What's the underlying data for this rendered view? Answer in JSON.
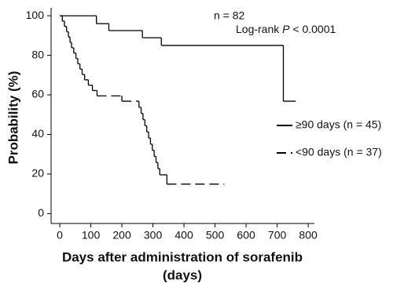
{
  "chart_data": {
    "type": "step",
    "xlabel": [
      "Days after administration of sorafenib",
      "(days)"
    ],
    "ylabel": "Probability (%)",
    "annotations": [
      "n = 82",
      "Log-rank",
      "P",
      "< 0.0001"
    ],
    "xlim": [
      -28,
      820
    ],
    "xticks": [
      0,
      100,
      200,
      300,
      400,
      500,
      600,
      700,
      800
    ],
    "ylim": [
      -5,
      104
    ],
    "yticks": [
      0,
      20,
      40,
      60,
      80,
      100
    ],
    "legend": "right",
    "series": [
      {
        "name": "≥90 days (n = 45)",
        "color": "#000000",
        "dash": false,
        "x": [
          0,
          118,
          158,
          266,
          327,
          720,
          760
        ],
        "values": [
          100,
          96,
          92.5,
          88.9,
          85,
          56.8,
          56.8
        ]
      },
      {
        "name": "<90 days (n = 37)",
        "color": "#000000",
        "dash": true,
        "x": [
          0,
          8,
          15,
          22,
          28,
          33,
          38,
          45,
          52,
          58,
          65,
          72,
          80,
          92,
          105,
          120,
          200,
          255,
          262,
          268,
          274,
          280,
          286,
          292,
          298,
          304,
          310,
          316,
          322,
          345,
          530
        ],
        "values": [
          100,
          97.3,
          94.6,
          91.9,
          89.2,
          86.5,
          83.8,
          81.1,
          78.4,
          75.7,
          73,
          70.3,
          67.6,
          64.9,
          62.2,
          59.5,
          56.8,
          53.7,
          50.6,
          47.5,
          44.4,
          41.3,
          38.2,
          35.1,
          32,
          28.9,
          25.8,
          22.7,
          19.6,
          14.9,
          14.9
        ]
      }
    ]
  }
}
